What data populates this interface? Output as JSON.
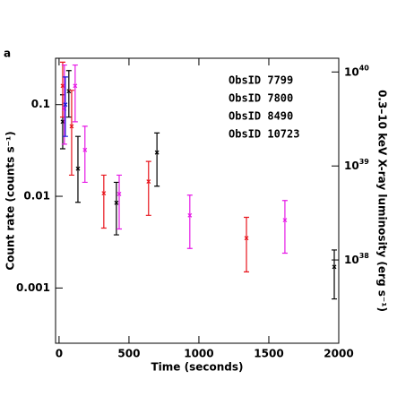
{
  "chart_data": {
    "type": "scatter",
    "panel_label": "a",
    "xlabel": "Time (seconds)",
    "ylabel": "Count rate (counts s⁻¹)",
    "y2label": "0.3–10 keV X-ray luminosity (erg s⁻¹)",
    "xlim": [
      -25,
      2000
    ],
    "xticks": [
      0,
      500,
      1000,
      1500,
      2000
    ],
    "ylim": [
      0.00025,
      0.32
    ],
    "yticks": [
      0.1,
      0.01,
      0.001
    ],
    "yscale": "log",
    "y2lim": [
      1.3e+37,
      1.4e+40
    ],
    "y2ticks": [
      {
        "value": 1e+40,
        "label": "10^40"
      },
      {
        "value": 1e+39,
        "label": "10^39"
      },
      {
        "value": 1e+38,
        "label": "10^38"
      }
    ],
    "y2scale": "log",
    "legend": "upper right",
    "series": [
      {
        "name": "ObsID 7799",
        "color": "#000000",
        "x": [
          26,
          70,
          135,
          410,
          700,
          1968
        ],
        "values": [
          0.065,
          0.14,
          0.02,
          0.0085,
          0.03,
          0.0017
        ],
        "lower": [
          0.033,
          0.073,
          0.0086,
          0.0038,
          0.0129,
          0.00076
        ],
        "upper": [
          0.128,
          0.235,
          0.045,
          0.0142,
          0.049,
          0.0026
        ]
      },
      {
        "name": "ObsID 7800",
        "color": "#e8141c",
        "x": [
          26,
          90,
          320,
          640,
          1340
        ],
        "values": [
          0.16,
          0.058,
          0.0108,
          0.0145,
          0.0035
        ],
        "lower": [
          0.073,
          0.017,
          0.0045,
          0.0062,
          0.0015
        ],
        "upper": [
          0.29,
          0.143,
          0.017,
          0.024,
          0.0059
        ]
      },
      {
        "name": "ObsID 8490",
        "color": "#e619e6",
        "x": [
          38,
          115,
          185,
          430,
          935,
          1615
        ],
        "values": [
          0.09,
          0.16,
          0.032,
          0.0106,
          0.0062,
          0.0055
        ],
        "lower": [
          0.037,
          0.065,
          0.0142,
          0.0044,
          0.0027,
          0.0024
        ],
        "upper": [
          0.27,
          0.27,
          0.058,
          0.017,
          0.0103,
          0.009
        ]
      },
      {
        "name": "ObsID 10723",
        "color": "#1a1adc",
        "x": [
          45
        ],
        "values": [
          0.1
        ],
        "lower": [
          0.045
        ],
        "upper": [
          0.2
        ]
      }
    ]
  }
}
